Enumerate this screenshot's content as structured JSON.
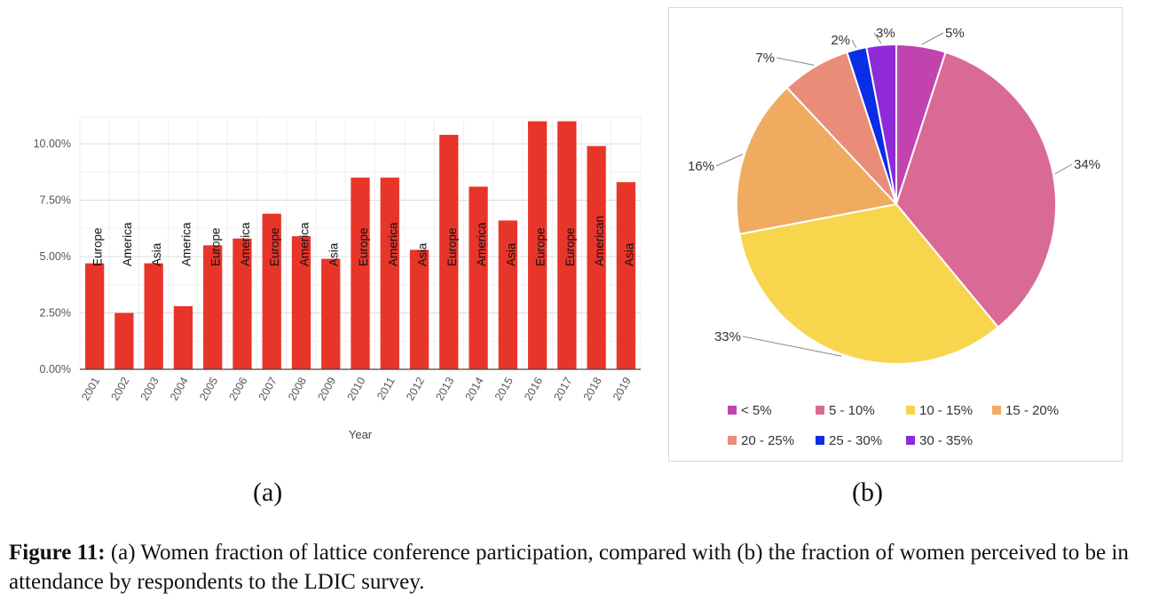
{
  "chart_data": [
    {
      "type": "bar",
      "xlabel": "Year",
      "ylabel": "",
      "ylim": [
        0,
        0.12
      ],
      "y_ticks": [
        "0.00%",
        "2.50%",
        "5.00%",
        "7.50%",
        "10.00%"
      ],
      "y_tick_values": [
        0,
        0.025,
        0.05,
        0.075,
        0.1
      ],
      "color": "#e8352a",
      "grid": true,
      "categories": [
        "2001",
        "2002",
        "2003",
        "2004",
        "2005",
        "2006",
        "2007",
        "2008",
        "2009",
        "2010",
        "2011",
        "2012",
        "2013",
        "2014",
        "2015",
        "2016",
        "2017",
        "2018",
        "2019"
      ],
      "values": [
        0.047,
        0.025,
        0.047,
        0.028,
        0.055,
        0.058,
        0.069,
        0.059,
        0.049,
        0.085,
        0.085,
        0.053,
        0.104,
        0.081,
        0.066,
        0.11,
        0.11,
        0.099,
        0.083
      ],
      "bar_labels": [
        "Europe",
        "America",
        "Asia",
        "America",
        "Europe",
        "America",
        "Europe",
        "America",
        "Asia",
        "Europe",
        "America",
        "Asia",
        "Europe",
        "America",
        "Asia",
        "Europe",
        "Europe",
        "American",
        "Asia"
      ]
    },
    {
      "type": "pie",
      "slices": [
        {
          "label": "< 5%",
          "value": 5,
          "display": "5%",
          "color": "#c043b0"
        },
        {
          "label": "5 - 10%",
          "value": 34,
          "display": "34%",
          "color": "#d96a96"
        },
        {
          "label": "10 - 15%",
          "value": 33,
          "display": "33%",
          "color": "#f7d64d"
        },
        {
          "label": "15 - 20%",
          "value": 16,
          "display": "16%",
          "color": "#f0ab60"
        },
        {
          "label": "20 - 25%",
          "value": 7,
          "display": "7%",
          "color": "#e98d79"
        },
        {
          "label": "25 - 30%",
          "value": 2,
          "display": "2%",
          "color": "#0a2ee6"
        },
        {
          "label": "30 - 35%",
          "value": 3,
          "display": "3%",
          "color": "#8e2bd6"
        }
      ],
      "legend_position": "bottom"
    }
  ],
  "labels": {
    "a": "(a)",
    "b": "(b)"
  },
  "caption": {
    "lead": "Figure 11:",
    "text": " (a) Women fraction of lattice conference participation, compared with (b) the fraction of women perceived to be in attendance by respondents to the LDIC survey."
  }
}
